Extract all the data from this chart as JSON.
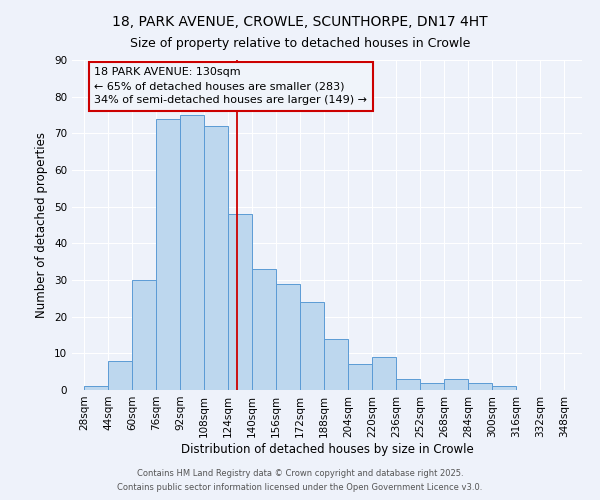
{
  "title_line1": "18, PARK AVENUE, CROWLE, SCUNTHORPE, DN17 4HT",
  "title_line2": "Size of property relative to detached houses in Crowle",
  "xlabel": "Distribution of detached houses by size in Crowle",
  "ylabel": "Number of detached properties",
  "bar_values": [
    1,
    8,
    30,
    74,
    75,
    72,
    48,
    33,
    29,
    24,
    14,
    7,
    9,
    3,
    2,
    3,
    2,
    1
  ],
  "bin_starts": [
    28,
    44,
    60,
    76,
    92,
    108,
    124,
    140,
    156,
    172,
    188,
    204,
    220,
    236,
    252,
    268,
    284,
    300
  ],
  "bin_width": 16,
  "tick_labels": [
    "28sqm",
    "44sqm",
    "60sqm",
    "76sqm",
    "92sqm",
    "108sqm",
    "124sqm",
    "140sqm",
    "156sqm",
    "172sqm",
    "188sqm",
    "204sqm",
    "220sqm",
    "236sqm",
    "252sqm",
    "268sqm",
    "284sqm",
    "300sqm",
    "316sqm",
    "332sqm",
    "348sqm"
  ],
  "bar_color": "#bdd7ee",
  "bar_edgecolor": "#5b9bd5",
  "vline_x": 130,
  "vline_color": "#cc0000",
  "annotation_text": "18 PARK AVENUE: 130sqm\n← 65% of detached houses are smaller (283)\n34% of semi-detached houses are larger (149) →",
  "annotation_box_edgecolor": "#cc0000",
  "annotation_box_facecolor": "#f0f4fa",
  "ylim": [
    0,
    90
  ],
  "yticks": [
    0,
    10,
    20,
    30,
    40,
    50,
    60,
    70,
    80,
    90
  ],
  "xlim_left": 20,
  "xlim_right": 360,
  "bg_color": "#eef2fa",
  "grid_color": "#ffffff",
  "footer1": "Contains HM Land Registry data © Crown copyright and database right 2025.",
  "footer2": "Contains public sector information licensed under the Open Government Licence v3.0.",
  "title_fontsize": 10,
  "subtitle_fontsize": 9,
  "axis_label_fontsize": 8.5,
  "tick_fontsize": 7.5,
  "annotation_fontsize": 8,
  "footer_fontsize": 6
}
